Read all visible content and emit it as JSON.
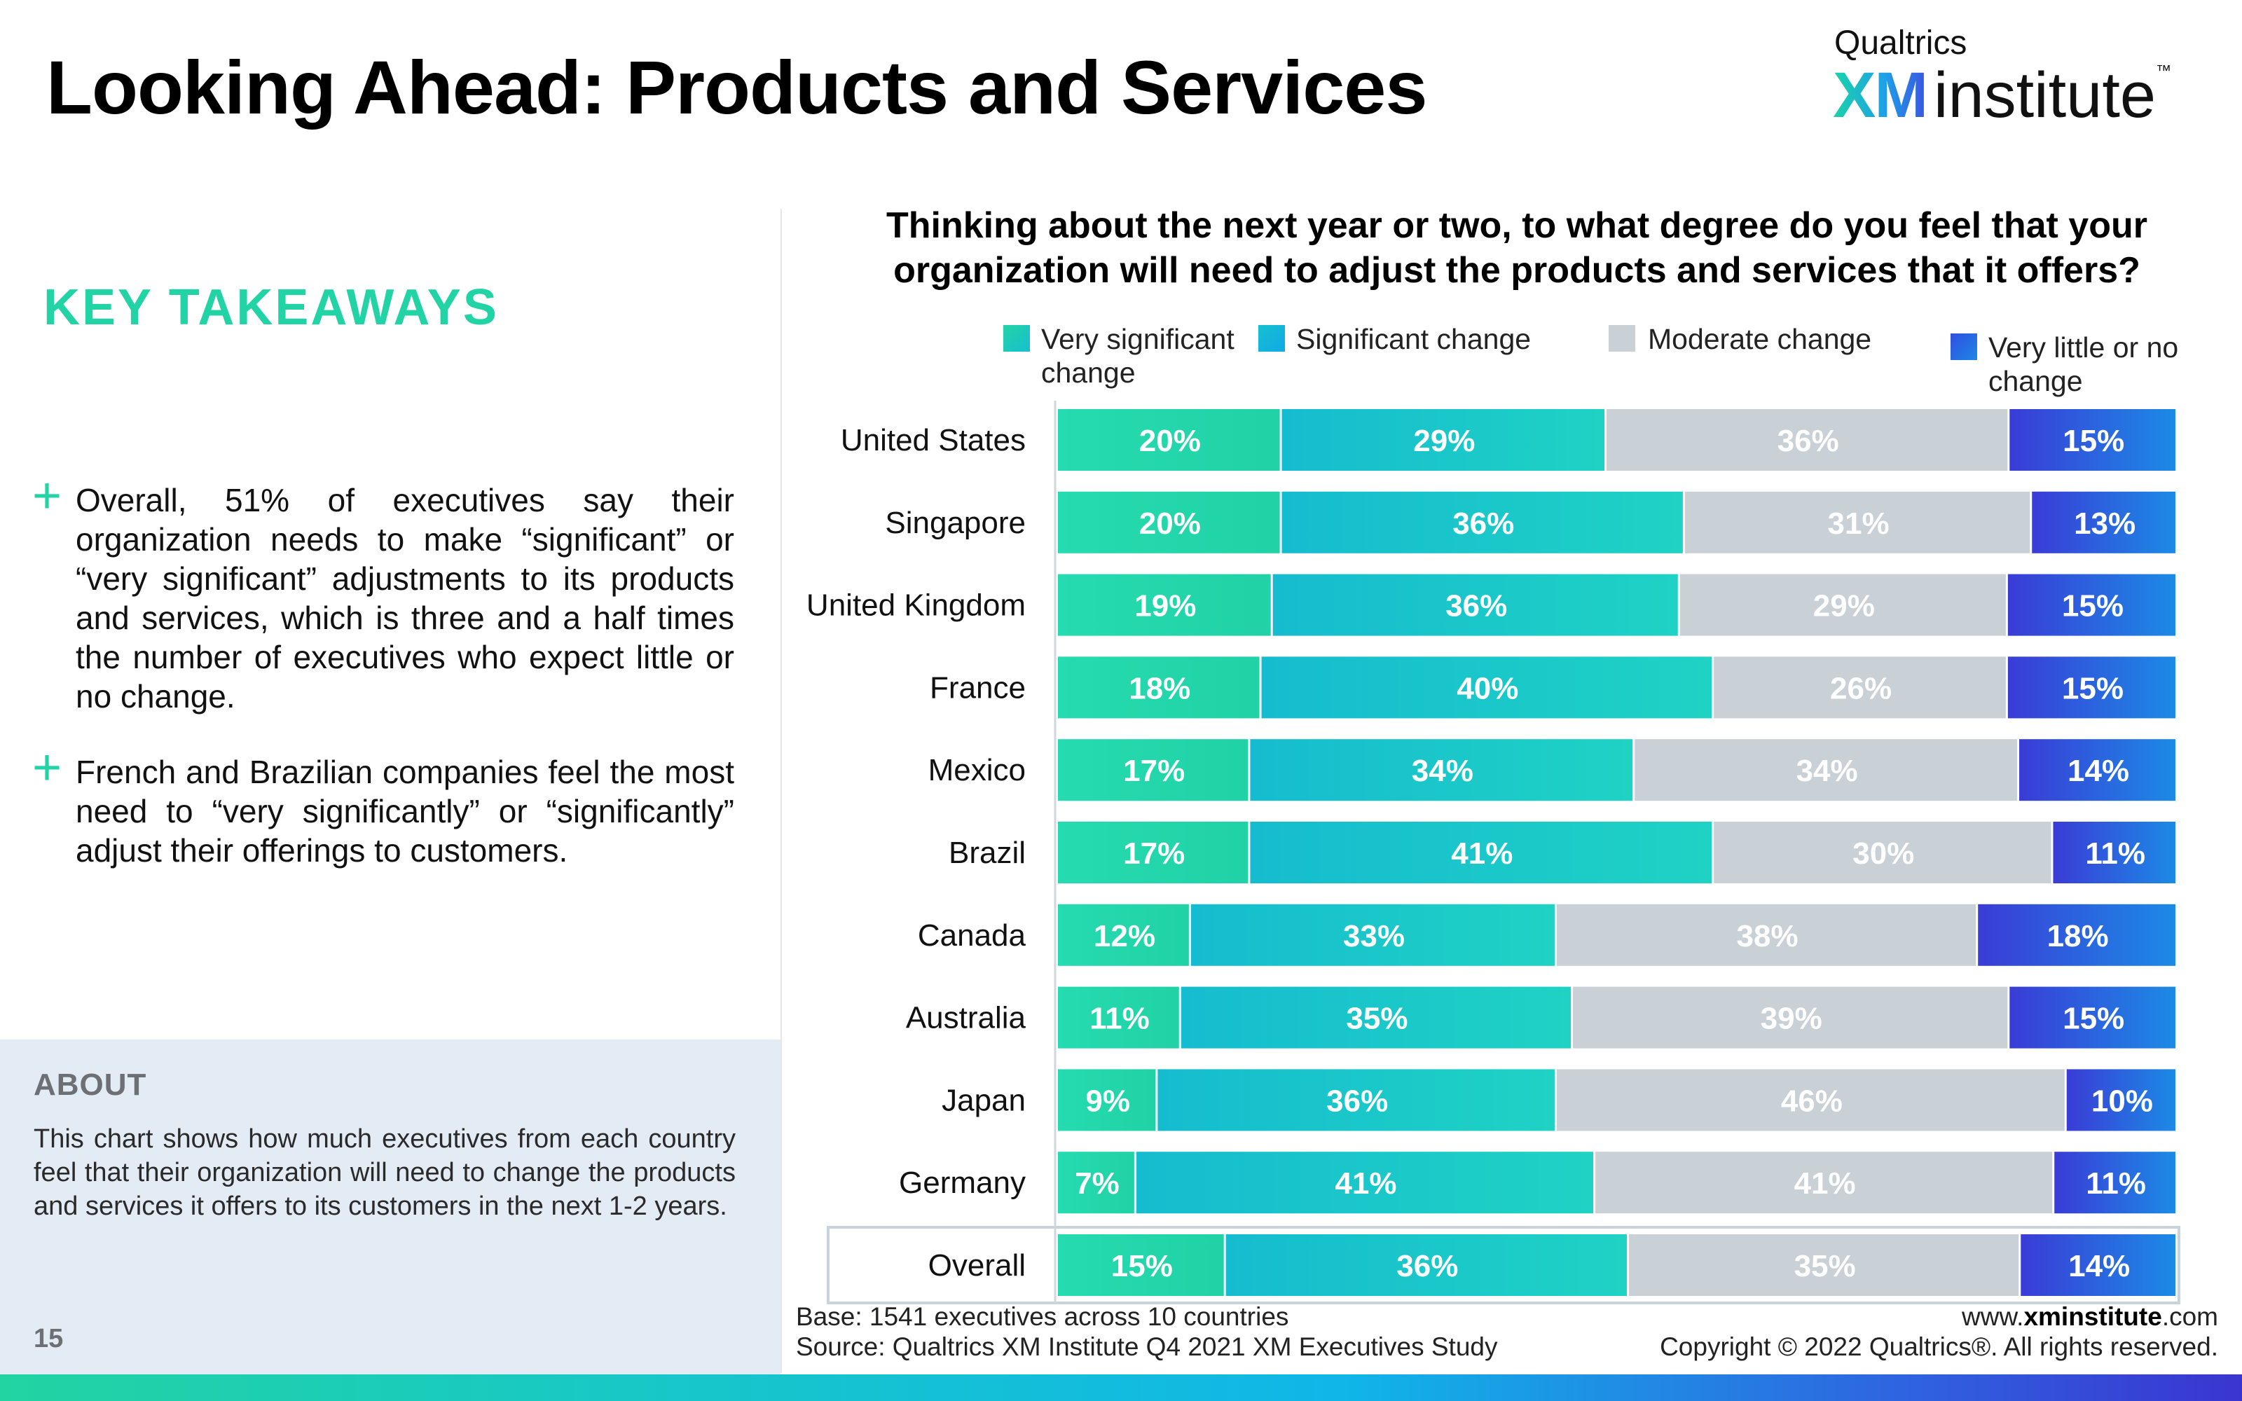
{
  "page": {
    "title": "Looking Ahead: Products and Services",
    "page_number": "15"
  },
  "brand": {
    "company": "Qualtrics",
    "xm": "XM",
    "institute": "institute",
    "tm": "™"
  },
  "takeaways": {
    "heading": "KEY TAKEAWAYS",
    "items": [
      "Overall, 51% of executives say their organization needs to make “significant” or “very significant” adjustments to its products and services, which is three and a half times the number of executives who expect little or no change.",
      "French and Brazilian companies feel the most need to “very significantly” or “significantly” adjust their offerings to customers."
    ]
  },
  "about": {
    "heading": "ABOUT",
    "text": "This chart shows how much executives from each country feel that their organization will need to change the products and services it offers to its customers in the next 1-2 years."
  },
  "footer": {
    "base": "Base: 1541 executives across 10 countries",
    "source": "Source: Qualtrics XM Institute Q4 2021 XM Executives Study",
    "url_prefix": "www.",
    "url_bold": "xminstitute",
    "url_suffix": ".com",
    "copyright": "Copyright © 2022 Qualtrics®. All rights reserved."
  },
  "colors": {
    "accent_green": "#22d3a5",
    "very_significant": [
      "#22d3a5",
      "#26dcae"
    ],
    "significant": [
      "#17c0cf",
      "#1fd0c6"
    ],
    "moderate": "#c9d0d6",
    "very_little": [
      "#3a3cd6",
      "#1f86e6"
    ],
    "about_bg": "#e3ebf4"
  },
  "chart_data": {
    "type": "bar",
    "orientation": "horizontal",
    "stacked": true,
    "normalized": true,
    "title": "Thinking about the next year or two, to what degree do you feel that your organization will need to adjust the products and services that it offers?",
    "categories": [
      "United States",
      "Singapore",
      "United Kingdom",
      "France",
      "Mexico",
      "Brazil",
      "Canada",
      "Australia",
      "Japan",
      "Germany",
      "Overall"
    ],
    "highlighted_category": "Overall",
    "series": [
      {
        "name": "Very significant change",
        "values": [
          20,
          20,
          19,
          18,
          17,
          17,
          12,
          11,
          9,
          7,
          15
        ]
      },
      {
        "name": "Significant change",
        "values": [
          29,
          36,
          36,
          40,
          34,
          41,
          33,
          35,
          36,
          41,
          36
        ]
      },
      {
        "name": "Moderate change",
        "values": [
          36,
          31,
          29,
          26,
          34,
          30,
          38,
          39,
          46,
          41,
          35
        ]
      },
      {
        "name": "Very little or no change",
        "values": [
          15,
          13,
          15,
          15,
          14,
          11,
          18,
          15,
          10,
          11,
          14
        ]
      }
    ],
    "value_suffix": "%",
    "legend_position": "top",
    "grid": false
  }
}
